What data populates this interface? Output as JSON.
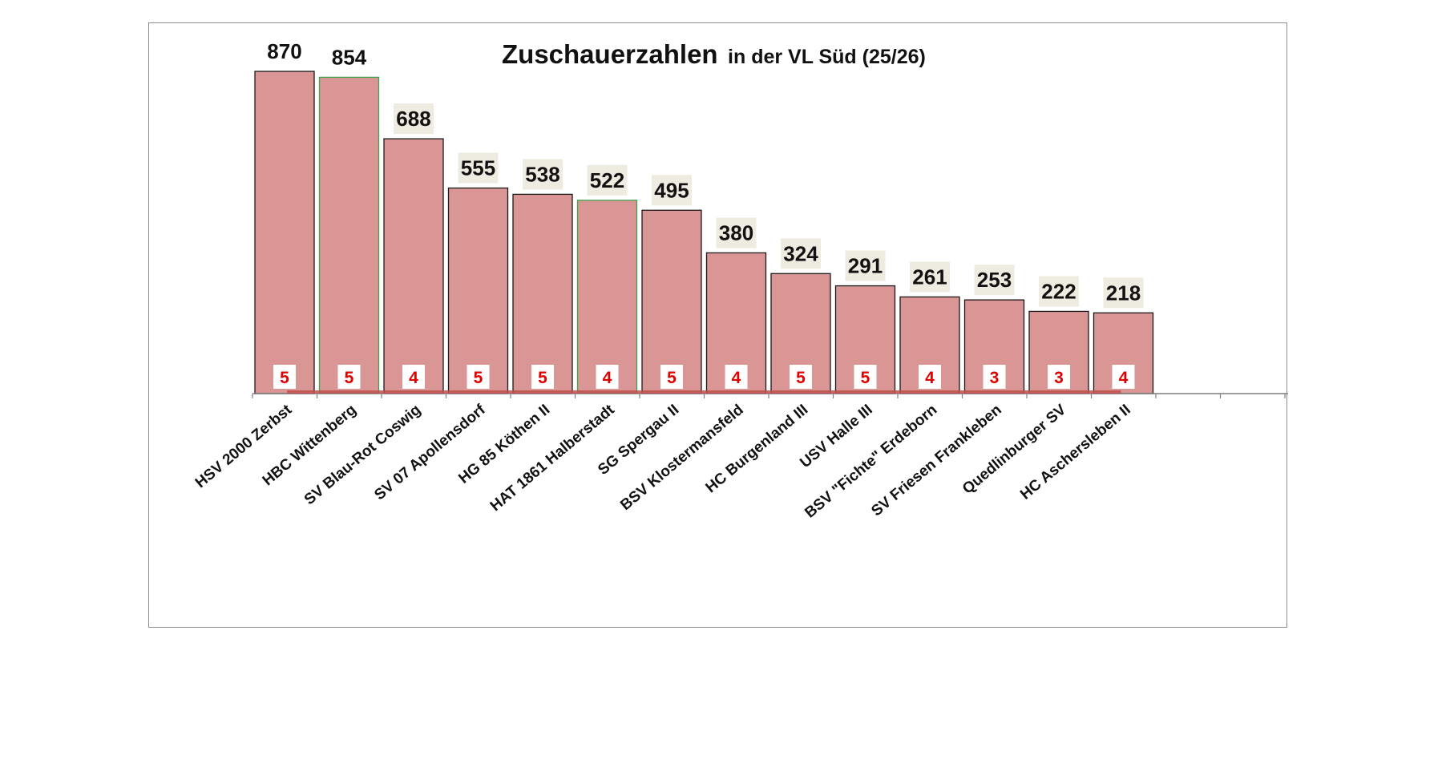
{
  "chart_data": {
    "type": "bar",
    "title": "Zuschauerzahlen",
    "subtitle": "in der VL Süd (25/26)",
    "categories": [
      "HSV 2000 Zerbst",
      "HBC Wittenberg",
      "SV Blau-Rot Coswig",
      "SV 07 Apollensdorf",
      "HG 85 Köthen II",
      "HAT 1861 Halberstadt",
      "SG Spergau II",
      "BSV Klostermansfeld",
      "HC Burgenland III",
      "USV Halle III",
      "BSV \"Fichte\" Erdeborn",
      "SV Friesen Frankleben",
      "Quedlinburger SV",
      "HC Aschersleben II"
    ],
    "values": [
      870,
      854,
      688,
      555,
      538,
      522,
      495,
      380,
      324,
      291,
      261,
      253,
      222,
      218
    ],
    "games": [
      5,
      5,
      4,
      5,
      5,
      4,
      5,
      4,
      5,
      5,
      4,
      3,
      3,
      4
    ],
    "xlabel": "",
    "ylabel": "",
    "ylim": [
      0,
      870
    ],
    "grid": false,
    "legend": "none"
  },
  "colors": {
    "bar_fill": "#d99694",
    "bar_stroke": "#1a1a1a",
    "bar_stroke_highlight": "#3fa34d",
    "label_box": "#eeece1",
    "games_text": "#e00000",
    "games_box": "#ffffff",
    "baseline_bar": "#c0504d",
    "axis": "#7f7f7f"
  },
  "highlighted_bars": [
    1,
    5
  ]
}
